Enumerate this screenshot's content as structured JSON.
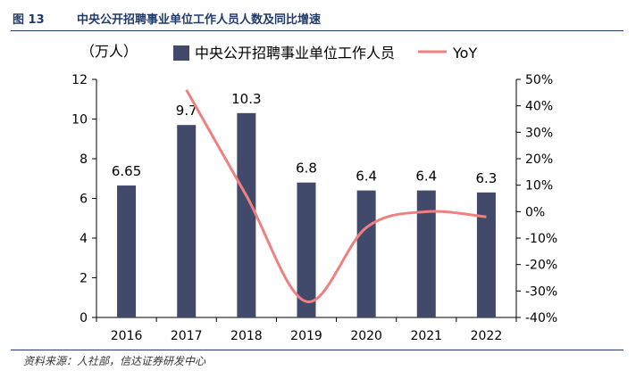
{
  "figure": {
    "number": "图 13",
    "title": "中央公开招聘事业单位工作人员人数及同比增速",
    "source": "资料来源：人社部，信达证券研发中心"
  },
  "chart_data": {
    "type": "bar",
    "categories": [
      "2016",
      "2017",
      "2018",
      "2019",
      "2020",
      "2021",
      "2022"
    ],
    "series": [
      {
        "name": "中央公开招聘事业单位工作人员",
        "type": "bar",
        "axis": "left",
        "values": [
          6.65,
          9.7,
          10.3,
          6.8,
          6.4,
          6.4,
          6.3
        ],
        "data_labels": [
          "6.65",
          "9.7",
          "10.3",
          "6.8",
          "6.4",
          "6.4",
          "6.3"
        ]
      },
      {
        "name": "YoY",
        "type": "line",
        "axis": "right",
        "values": [
          null,
          46,
          6,
          -34,
          -6,
          0,
          -2
        ]
      }
    ],
    "y_left": {
      "unit_label": "（万人）",
      "ylim": [
        0,
        12
      ],
      "ticks": [
        "0",
        "2",
        "4",
        "6",
        "8",
        "10",
        "12"
      ]
    },
    "y_right": {
      "ylim": [
        -40,
        50
      ],
      "ticks": [
        "-40%",
        "-30%",
        "-20%",
        "-10%",
        "0%",
        "10%",
        "20%",
        "30%",
        "40%",
        "50%"
      ]
    },
    "colors": {
      "bar": "#424a6b",
      "line": "#f08080"
    },
    "legend_position": "top",
    "grid": false
  }
}
